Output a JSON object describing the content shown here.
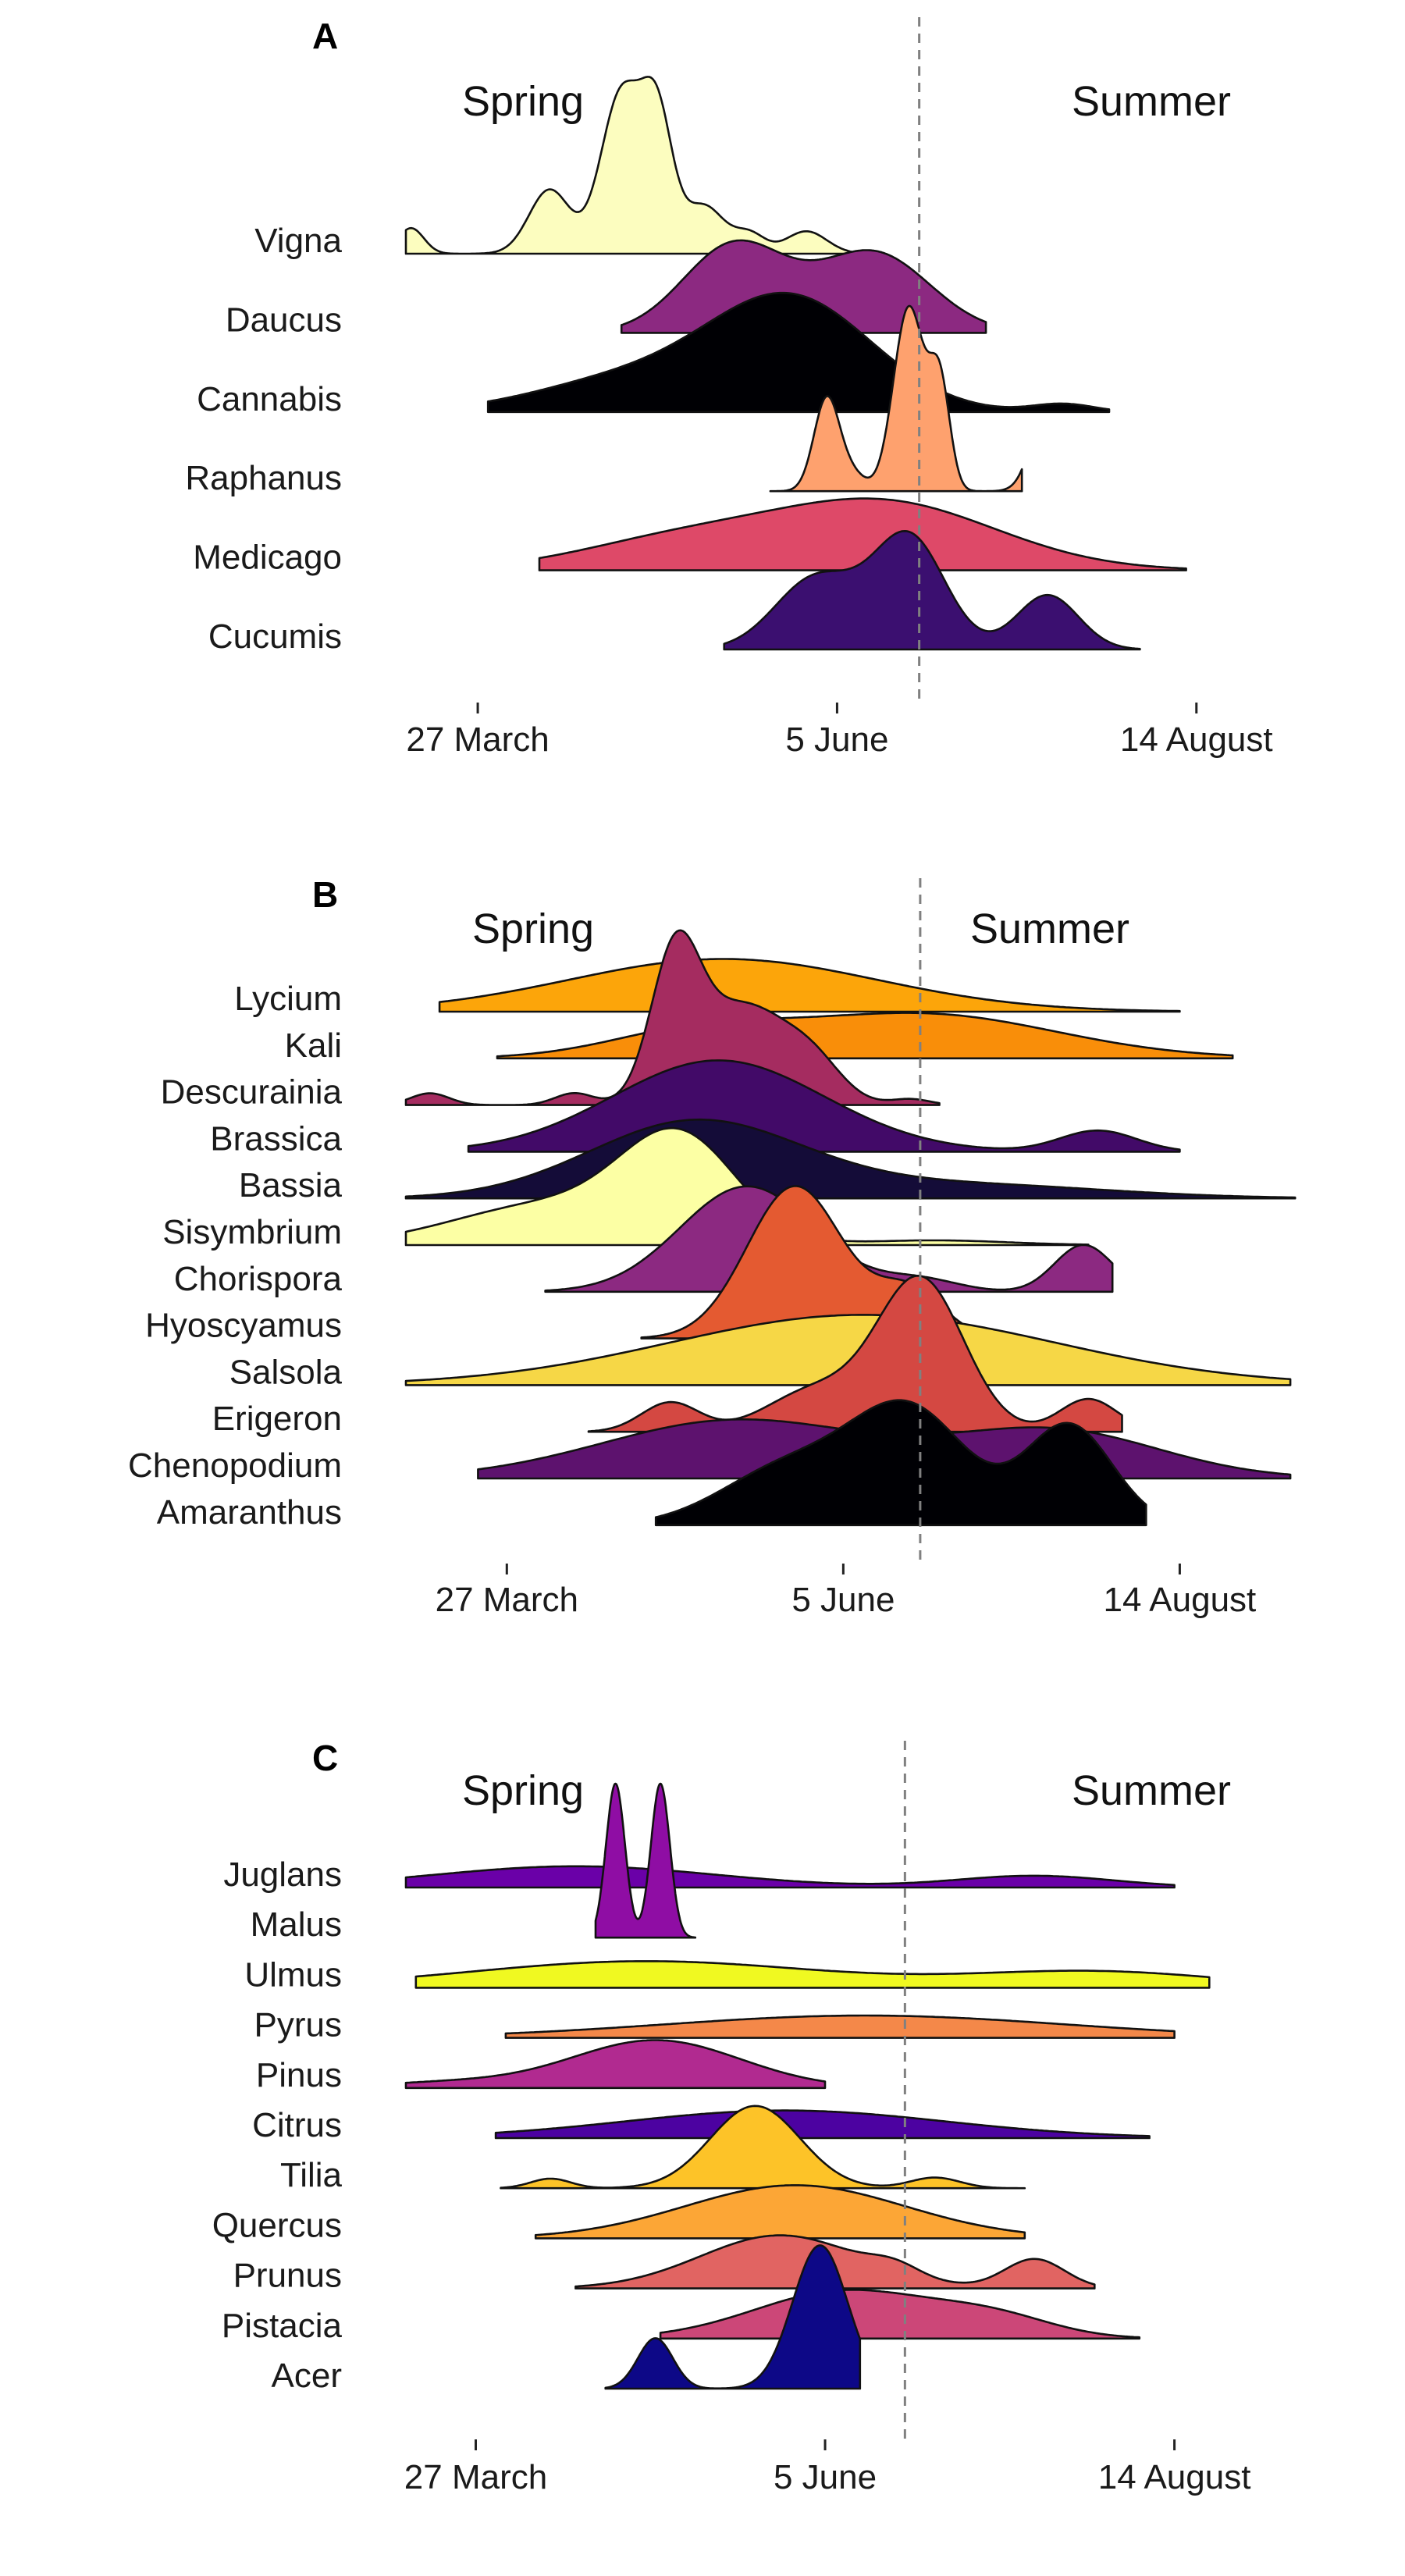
{
  "chart_data": [
    {
      "type": "ridgeline",
      "panel_label": "A",
      "season_labels": [
        "Spring",
        "Summer"
      ],
      "x_ticks": [
        "27 March",
        "5 June",
        "14 August"
      ],
      "x_tick_values": [
        86,
        156,
        226
      ],
      "xlim": [
        72,
        242
      ],
      "season_boundary": 172,
      "series": [
        {
          "name": "Vigna",
          "color": "#fcfdbf",
          "range": [
            72,
            162
          ],
          "peaks": [
            [
              73,
              2.5,
              0.16
            ],
            [
              100,
              4,
              0.4
            ],
            [
              114,
              4,
              1.0
            ],
            [
              121,
              3,
              0.8
            ],
            [
              130,
              4,
              0.3
            ],
            [
              139,
              3,
              0.12
            ],
            [
              150,
              4,
              0.14
            ]
          ]
        },
        {
          "name": "Daucus",
          "color": "#8c2981",
          "range": [
            114,
            185
          ],
          "peaks": [
            [
              136,
              10,
              0.55
            ],
            [
              163,
              11,
              0.5
            ]
          ]
        },
        {
          "name": "Cannabis",
          "color": "#000004",
          "range": [
            88,
            209
          ],
          "peaks": [
            [
              147,
              16,
              0.7
            ],
            [
              115,
              18,
              0.2
            ],
            [
              200,
              6,
              0.05
            ]
          ]
        },
        {
          "name": "Raphanus",
          "color": "#fea16e",
          "range": [
            143,
            192
          ],
          "peaks": [
            [
              154,
              2.5,
              0.58
            ],
            [
              159,
              2.5,
              0.1
            ],
            [
              170,
              3,
              1.15
            ],
            [
              176,
              2,
              0.65
            ],
            [
              197,
              3,
              0.55
            ]
          ]
        },
        {
          "name": "Medicago",
          "color": "#de4968",
          "range": [
            98,
            224
          ],
          "peaks": [
            [
              165,
              22,
              0.42
            ],
            [
              125,
              20,
              0.18
            ]
          ]
        },
        {
          "name": "Cucumis",
          "color": "#3b0f70",
          "range": [
            134,
            215
          ],
          "peaks": [
            [
              152,
              8,
              0.45
            ],
            [
              170,
              7,
              0.7
            ],
            [
              197,
              6,
              0.34
            ]
          ]
        }
      ]
    },
    {
      "type": "ridgeline",
      "panel_label": "B",
      "season_labels": [
        "Spring",
        "Summer"
      ],
      "x_ticks": [
        "27 March",
        "5 June",
        "14 August"
      ],
      "x_tick_values": [
        86,
        156,
        226
      ],
      "xlim": [
        65,
        255
      ],
      "season_boundary": 172,
      "series": [
        {
          "name": "Lycium",
          "color": "#fca50a",
          "range": [
            72,
            226
          ],
          "peaks": [
            [
              131,
              32,
              0.45
            ]
          ]
        },
        {
          "name": "Kali",
          "color": "#f98e09",
          "range": [
            84,
            237
          ],
          "peaks": [
            [
              172,
              28,
              0.38
            ],
            [
              125,
              18,
              0.2
            ]
          ]
        },
        {
          "name": "Descurainia",
          "color": "#a52c60",
          "range": [
            65,
            176
          ],
          "peaks": [
            [
              70,
              4,
              0.1
            ],
            [
              100,
              4,
              0.1
            ],
            [
              121,
              5,
              1.15
            ],
            [
              135,
              10,
              0.85
            ],
            [
              150,
              6,
              0.25
            ],
            [
              170,
              4,
              0.05
            ]
          ]
        },
        {
          "name": "Brassica",
          "color": "#420a68",
          "range": [
            78,
            226
          ],
          "peaks": [
            [
              130,
              22,
              0.78
            ],
            [
              209,
              8,
              0.18
            ]
          ]
        },
        {
          "name": "Bassia",
          "color": "#140c38",
          "range": [
            65,
            250
          ],
          "peaks": [
            [
              125,
              22,
              0.65
            ],
            [
              180,
              30,
              0.12
            ]
          ]
        },
        {
          "name": "Sisymbrium",
          "color": "#fcffa4",
          "range": [
            65,
            207
          ],
          "peaks": [
            [
              122,
              12,
              0.85
            ],
            [
              95,
              20,
              0.35
            ],
            [
              175,
              15,
              0.04
            ]
          ]
        },
        {
          "name": "Chorispora",
          "color": "#8c2981",
          "range": [
            94,
            212
          ],
          "peaks": [
            [
              136,
              14,
              0.9
            ],
            [
              206,
              6,
              0.4
            ],
            [
              172,
              8,
              0.1
            ]
          ]
        },
        {
          "name": "Hyoscyamus",
          "color": "#e45a31",
          "range": [
            114,
            184
          ],
          "peaks": [
            [
              146,
              10,
              1.3
            ],
            [
              170,
              7,
              0.4
            ]
          ]
        },
        {
          "name": "Salsola",
          "color": "#f6d746",
          "range": [
            65,
            249
          ],
          "peaks": [
            [
              160,
              40,
              0.6
            ]
          ]
        },
        {
          "name": "Erigeron",
          "color": "#d44842",
          "range": [
            103,
            214
          ],
          "peaks": [
            [
              172,
              9,
              1.3
            ],
            [
              120,
              6,
              0.25
            ],
            [
              150,
              10,
              0.35
            ],
            [
              207,
              6,
              0.28
            ]
          ]
        },
        {
          "name": "Chenopodium",
          "color": "#5d126e",
          "range": [
            80,
            249
          ],
          "peaks": [
            [
              134,
              28,
              0.5
            ],
            [
              200,
              22,
              0.4
            ]
          ]
        },
        {
          "name": "Amaranthus",
          "color": "#000004",
          "range": [
            117,
            219
          ],
          "peaks": [
            [
              170,
              12,
              0.95
            ],
            [
              203,
              9,
              0.85
            ],
            [
              145,
              14,
              0.5
            ]
          ]
        }
      ]
    },
    {
      "type": "ridgeline",
      "panel_label": "C",
      "season_labels": [
        "Spring",
        "Summer"
      ],
      "x_ticks": [
        "27 March",
        "5 June",
        "14 August"
      ],
      "x_tick_values": [
        86,
        156,
        226
      ],
      "xlim": [
        72,
        255
      ],
      "season_boundary": 172,
      "series": [
        {
          "name": "Juglans",
          "color": "#6a00a8",
          "range": [
            72,
            226
          ],
          "peaks": [
            [
              106,
              28,
              0.4
            ],
            [
              198,
              16,
              0.22
            ]
          ]
        },
        {
          "name": "Malus",
          "color": "#8f0da4",
          "range": [
            110,
            130
          ],
          "peaks": [
            [
              114,
              1.9,
              2.9
            ],
            [
              123,
              1.9,
              2.9
            ]
          ]
        },
        {
          "name": "Ulmus",
          "color": "#f0f921",
          "range": [
            74,
            233
          ],
          "peaks": [
            [
              120,
              35,
              0.5
            ],
            [
              210,
              25,
              0.3
            ]
          ]
        },
        {
          "name": "Pyrus",
          "color": "#f48849",
          "range": [
            92,
            226
          ],
          "peaks": [
            [
              164,
              40,
              0.42
            ]
          ]
        },
        {
          "name": "Pinus",
          "color": "#b12a90",
          "range": [
            72,
            156
          ],
          "peaks": [
            [
              122,
              17,
              0.9
            ],
            [
              80,
              14,
              0.1
            ]
          ]
        },
        {
          "name": "Citrus",
          "color": "#4c02a1",
          "range": [
            90,
            221
          ],
          "peaks": [
            [
              148,
              32,
              0.52
            ]
          ]
        },
        {
          "name": "Tilia",
          "color": "#fdc328",
          "range": [
            91,
            196
          ],
          "peaks": [
            [
              142,
              9,
              1.55
            ],
            [
              101,
              4,
              0.18
            ],
            [
              178,
              5,
              0.2
            ]
          ]
        },
        {
          "name": "Quercus",
          "color": "#fca636",
          "range": [
            98,
            196
          ],
          "peaks": [
            [
              150,
              22,
              1.0
            ]
          ]
        },
        {
          "name": "Prunus",
          "color": "#e16462",
          "range": [
            106,
            210
          ],
          "peaks": [
            [
              147,
              16,
              1.0
            ],
            [
              198,
              6,
              0.55
            ],
            [
              170,
              5,
              0.2
            ]
          ]
        },
        {
          "name": "Pistacia",
          "color": "#cc4778",
          "range": [
            123,
            219
          ],
          "peaks": [
            [
              160,
              18,
              0.9
            ],
            [
              190,
              12,
              0.35
            ]
          ]
        },
        {
          "name": "Acer",
          "color": "#0d0887",
          "range": [
            112,
            163
          ],
          "peaks": [
            [
              155,
              5.5,
              2.7
            ],
            [
              122,
              3.5,
              0.95
            ]
          ]
        }
      ]
    }
  ]
}
